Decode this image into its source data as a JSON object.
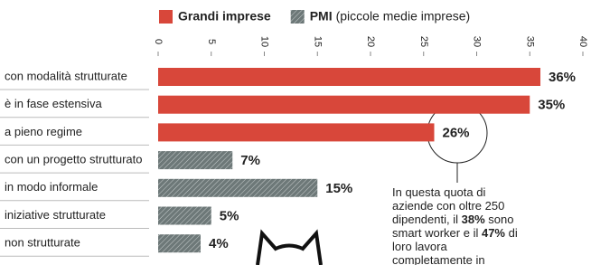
{
  "chart_data": {
    "type": "hbar",
    "legend_note": "(piccole medie imprese)",
    "categories": [
      "con modalità strutturate",
      "è in fase estensiva",
      "a pieno regime",
      "con un progetto strutturato",
      "in modo informale",
      "iniziative strutturate",
      "non strutturate"
    ],
    "series": [
      {
        "name": "Grandi imprese",
        "color": "#d8473a",
        "values": [
          36,
          35,
          26,
          null,
          null,
          null,
          null
        ],
        "value_labels": [
          "36%",
          "35%",
          "26%",
          null,
          null,
          null,
          null
        ]
      },
      {
        "name": "PMI",
        "color": "#6d7878",
        "values": [
          null,
          null,
          null,
          7,
          15,
          5,
          4
        ],
        "value_labels": [
          null,
          null,
          null,
          "7%",
          "15%",
          "5%",
          "4%"
        ]
      }
    ],
    "xlim": [
      0,
      40
    ],
    "xticks": [
      0,
      5,
      10,
      15,
      20,
      25,
      30,
      35,
      40
    ],
    "annotation": [
      "In questa quota di aziende con oltre 250 dipendenti, il ",
      "38%",
      " sono smart worker e il ",
      "47%",
      " di loro lavora completamente in"
    ]
  }
}
